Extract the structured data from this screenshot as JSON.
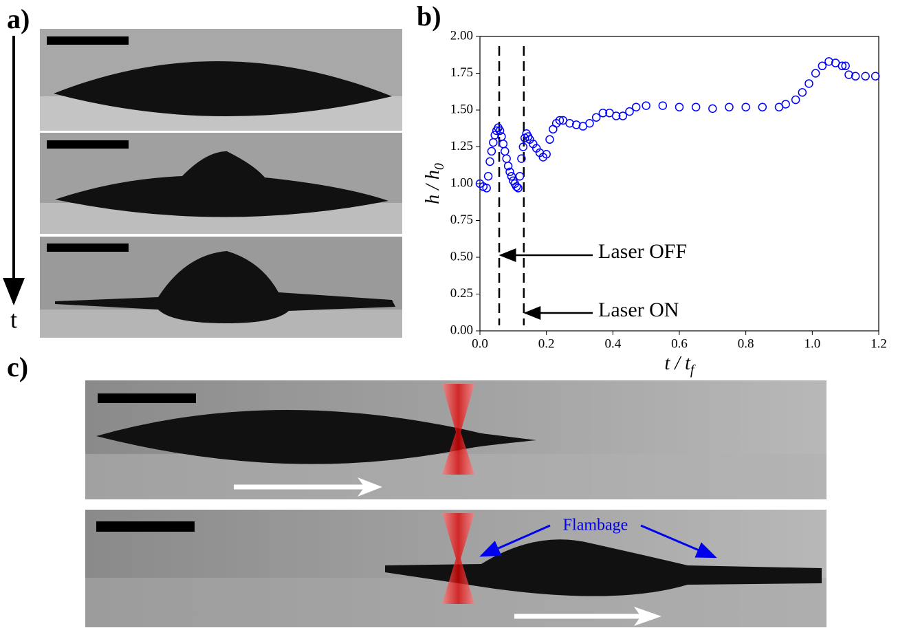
{
  "panel_labels": [
    "a)",
    "b)",
    "c)"
  ],
  "time_label": "t",
  "chart_data": {
    "type": "scatter",
    "x_label": [
      "t / t",
      "f"
    ],
    "y_label": [
      "h / h",
      "0"
    ],
    "xlim": [
      0,
      1.2
    ],
    "ylim": [
      0,
      2
    ],
    "xticks": [
      {
        "value": 0,
        "label": "0.0"
      },
      0.2,
      0.4,
      0.6,
      0.8,
      {
        "value": 1,
        "label": "1.0"
      },
      1.2
    ],
    "yticks": [
      {
        "value": 0,
        "label": "0.00"
      },
      0.25,
      {
        "value": 0.5,
        "label": "0.50"
      },
      0.75,
      {
        "value": 1,
        "label": "1.00"
      },
      1.25,
      {
        "value": 1.5,
        "label": "1.50"
      },
      1.75,
      {
        "value": 2,
        "label": "2.00"
      }
    ],
    "vlines": [
      0.058,
      0.132
    ],
    "annotations": [
      "Laser OFF",
      "Laser ON"
    ],
    "series": [
      {
        "color": "#0000ff",
        "x": [
          0,
          0.01,
          0.02,
          0.025,
          0.03,
          0.035,
          0.04,
          0.045,
          0.05,
          0.055,
          0.06,
          0.065,
          0.07,
          0.075,
          0.08,
          0.085,
          0.09,
          0.095,
          0.1,
          0.105,
          0.11,
          0.115,
          0.12,
          0.125,
          0.13,
          0.135,
          0.14,
          0.145,
          0.15,
          0.16,
          0.17,
          0.18,
          0.19,
          0.2,
          0.21,
          0.22,
          0.23,
          0.24,
          0.25,
          0.27,
          0.29,
          0.31,
          0.33,
          0.35,
          0.37,
          0.39,
          0.41,
          0.43,
          0.45,
          0.47,
          0.5,
          0.55,
          0.6,
          0.65,
          0.7,
          0.75,
          0.8,
          0.85,
          0.9,
          0.92,
          0.95,
          0.97,
          0.99,
          1.01,
          1.03,
          1.05,
          1.07,
          1.09,
          1.1,
          1.11,
          1.13,
          1.16,
          1.19
        ],
        "values": [
          1.0,
          0.98,
          0.97,
          1.05,
          1.15,
          1.22,
          1.28,
          1.33,
          1.36,
          1.38,
          1.36,
          1.32,
          1.27,
          1.22,
          1.17,
          1.12,
          1.08,
          1.05,
          1.02,
          1.0,
          0.98,
          0.97,
          1.05,
          1.17,
          1.25,
          1.31,
          1.34,
          1.32,
          1.3,
          1.27,
          1.24,
          1.21,
          1.18,
          1.2,
          1.3,
          1.37,
          1.41,
          1.43,
          1.43,
          1.41,
          1.4,
          1.39,
          1.41,
          1.45,
          1.48,
          1.48,
          1.46,
          1.46,
          1.49,
          1.52,
          1.53,
          1.53,
          1.52,
          1.52,
          1.51,
          1.52,
          1.52,
          1.52,
          1.52,
          1.54,
          1.57,
          1.62,
          1.68,
          1.75,
          1.8,
          1.83,
          1.82,
          1.8,
          1.8,
          1.74,
          1.73,
          1.73,
          1.73
        ]
      }
    ]
  },
  "flambage_label": "Flambage"
}
